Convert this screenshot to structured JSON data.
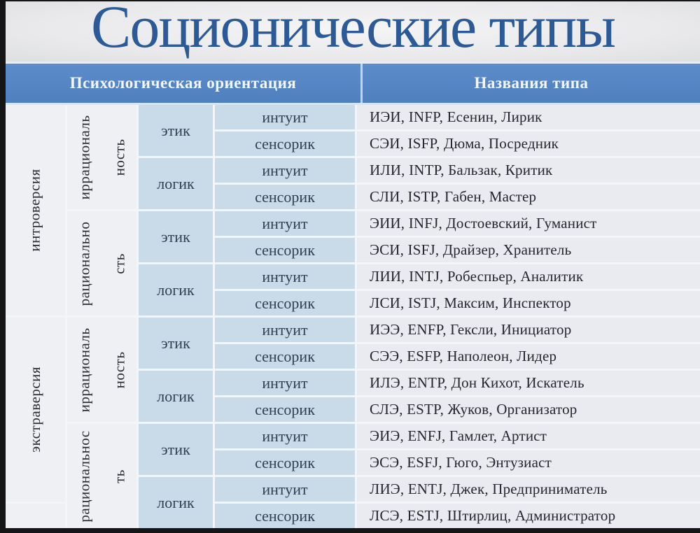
{
  "title": "Соционические типы",
  "header": {
    "psych_orientation": "Психологическая ориентация",
    "type_names": "Названия типа"
  },
  "colors": {
    "header_bg": "#5585c4",
    "title_text": "#2b5a97",
    "cell_blue": "#c9dbe9",
    "cell_light": "#eef0f4",
    "cell_names": "#e9ebf0",
    "frame_edge": "#151515"
  },
  "table": {
    "orientation": [
      {
        "label": "интроверсия"
      },
      {
        "label": "экстраверсия"
      },
      {
        "label": ""
      }
    ],
    "rationality": [
      {
        "line1": "иррациональ",
        "line2": "ность"
      },
      {
        "line1": "рационально",
        "line2": "сть"
      },
      {
        "line1": "иррациональ",
        "line2": "ность"
      },
      {
        "line1": "рациональнос",
        "line2": "ть"
      }
    ],
    "ethics": [
      "этик",
      "логик",
      "этик",
      "логик",
      "этик",
      "логик",
      "этик",
      "логик"
    ],
    "perception": [
      "интуит",
      "сенсорик",
      "интуит",
      "сенсорик",
      "интуит",
      "сенсорик",
      "интуит",
      "сенсорик",
      "интуит",
      "сенсорик",
      "интуит",
      "сенсорик",
      "интуит",
      "сенсорик",
      "интуит",
      "сенсорик"
    ],
    "names": [
      "ИЭИ, INFP, Есенин, Лирик",
      "СЭИ, ISFP, Дюма, Посредник",
      "ИЛИ, INTP, Бальзак, Критик",
      "СЛИ, ISTP, Габен, Мастер",
      "ЭИИ, INFJ, Достоевский, Гуманист",
      "ЭСИ, ISFJ, Драйзер, Хранитель",
      "ЛИИ, INTJ, Робеспьер, Аналитик",
      "ЛСИ, ISTJ, Максим, Инспектор",
      "ИЭЭ, ENFP, Гексли, Инициатор",
      "СЭЭ, ESFP, Наполеон, Лидер",
      "ИЛЭ, ENTP, Дон Кихот, Искатель",
      "СЛЭ, ESTP, Жуков, Организатор",
      "ЭИЭ, ENFJ, Гамлет, Артист",
      "ЭСЭ, ESFJ, Гюго, Энтузиаст",
      "ЛИЭ, ENTJ, Джек, Предприниматель",
      "ЛСЭ, ESTJ, Штирлиц, Администратор"
    ]
  }
}
